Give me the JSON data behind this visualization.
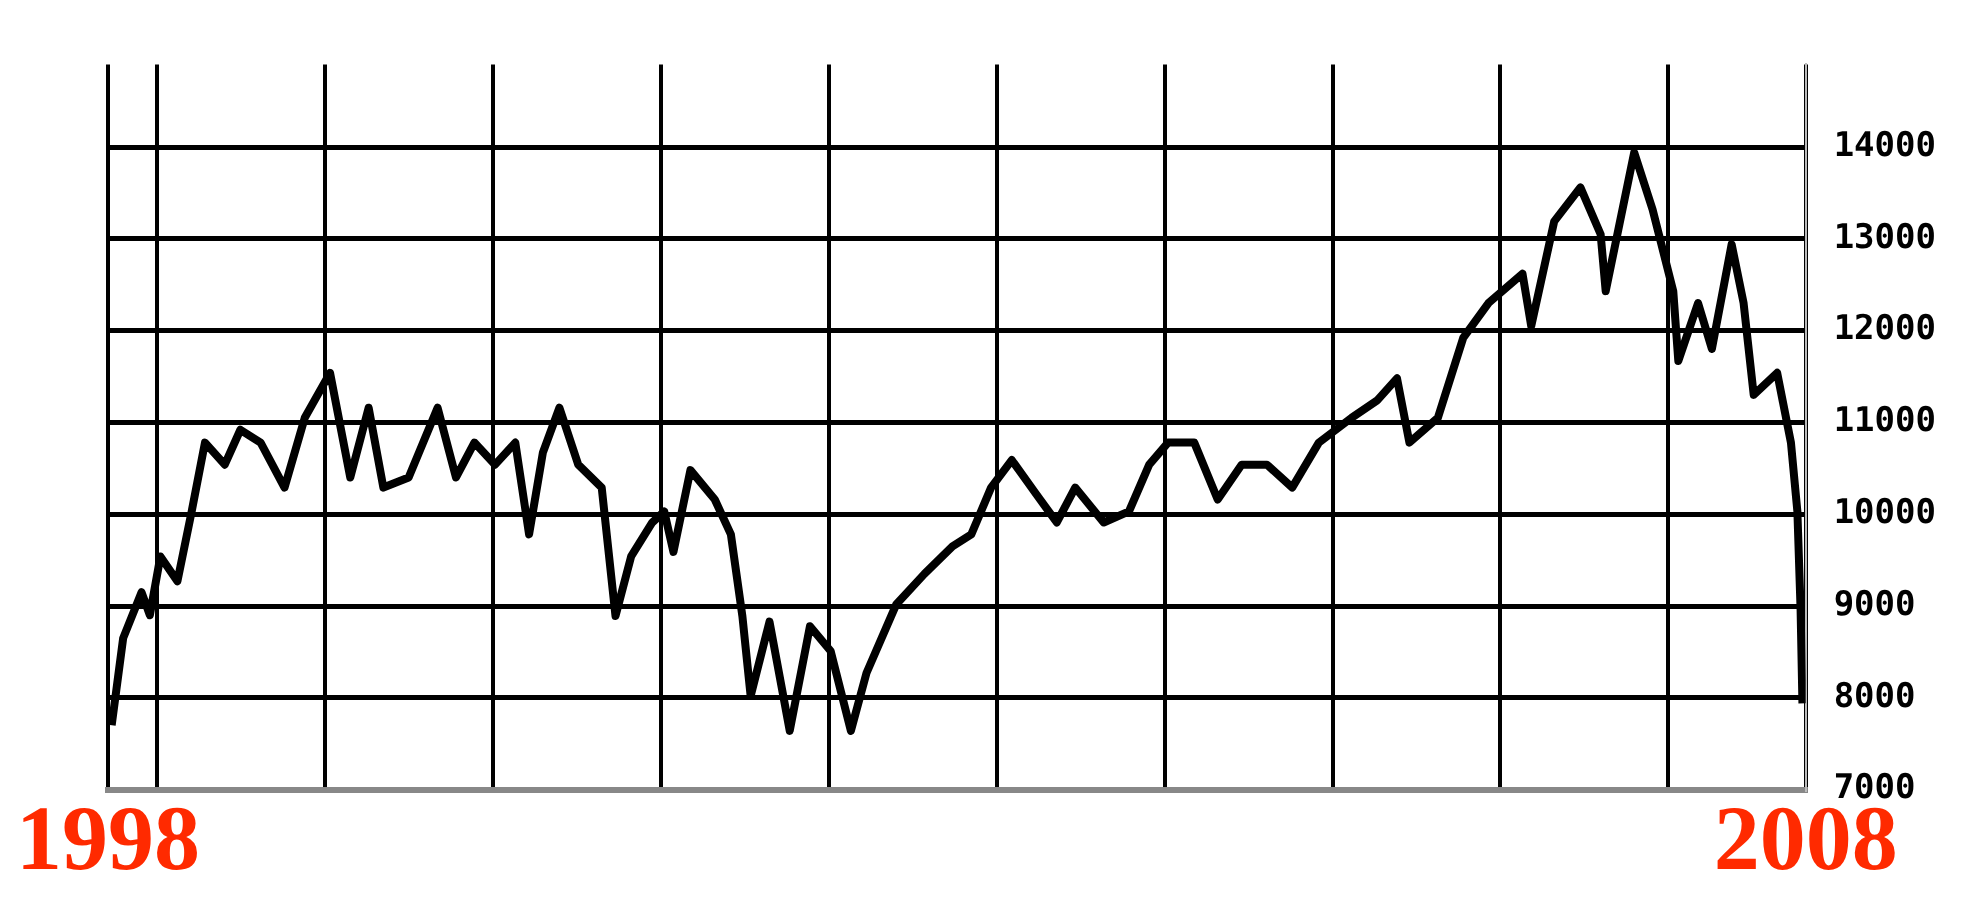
{
  "chart_data": {
    "type": "line",
    "x": [
      "1998-09-24",
      "1998-10-19",
      "1998-11-28",
      "1998-12-16",
      "1999-01-08",
      "1999-02-14",
      "1999-03-17",
      "1999-04-15",
      "1999-05-28",
      "1999-07-01",
      "1999-08-14",
      "1999-10-05",
      "1999-11-18",
      "2000-01-12",
      "2000-02-25",
      "2000-04-05",
      "2000-05-07",
      "2000-07-01",
      "2000-09-02",
      "2000-10-12",
      "2000-11-21",
      "2001-01-05",
      "2001-02-18",
      "2001-03-20",
      "2001-04-19",
      "2001-05-25",
      "2001-07-05",
      "2001-08-25",
      "2001-09-24",
      "2001-10-28",
      "2001-12-13",
      "2002-01-08",
      "2002-01-28",
      "2002-03-06",
      "2002-04-28",
      "2002-06-02",
      "2002-06-27",
      "2002-07-15",
      "2002-08-25",
      "2002-10-08",
      "2002-11-21",
      "2003-01-05",
      "2003-02-18",
      "2003-03-24",
      "2003-05-28",
      "2003-07-28",
      "2003-09-27",
      "2003-11-07",
      "2003-12-20",
      "2004-02-03",
      "2004-03-27",
      "2004-05-11",
      "2004-06-20",
      "2004-08-21",
      "2004-10-15",
      "2004-11-28",
      "2005-01-08",
      "2005-03-06",
      "2005-04-26",
      "2005-06-17",
      "2005-08-11",
      "2005-10-05",
      "2005-12-02",
      "2006-02-11",
      "2006-04-08",
      "2006-05-21",
      "2006-06-17",
      "2006-08-18",
      "2006-10-12",
      "2006-12-06",
      "2007-02-18",
      "2007-03-09",
      "2007-04-28",
      "2007-06-24",
      "2007-08-07",
      "2007-08-18",
      "2007-10-19",
      "2007-11-28",
      "2008-01-12",
      "2008-01-23",
      "2008-03-06",
      "2008-04-05",
      "2008-05-18",
      "2008-06-13",
      "2008-07-05",
      "2008-08-25",
      "2008-09-24",
      "2008-10-08",
      "2008-10-15",
      "2008-10-19"
    ],
    "series": [
      {
        "color": "#000000",
        "values": [
          7700,
          8650,
          9150,
          8900,
          9540,
          9270,
          10030,
          10780,
          10540,
          10920,
          10780,
          10290,
          11050,
          11540,
          10400,
          11160,
          10290,
          10400,
          11160,
          10400,
          10780,
          10540,
          10780,
          9780,
          10670,
          11160,
          10540,
          10290,
          8890,
          9540,
          9910,
          10030,
          9590,
          10480,
          10160,
          9780,
          8890,
          8020,
          8830,
          7640,
          8780,
          8510,
          7640,
          8270,
          9020,
          9350,
          9650,
          9780,
          10290,
          10590,
          10220,
          9910,
          10290,
          9910,
          10030,
          10540,
          10780,
          10780,
          10160,
          10540,
          10540,
          10290,
          10780,
          11050,
          11240,
          11480,
          10780,
          11050,
          11920,
          12300,
          12620,
          12050,
          13190,
          13560,
          13050,
          12430,
          13940,
          13320,
          12430,
          11670,
          12300,
          11800,
          12940,
          12300,
          11300,
          11540,
          10780,
          10030,
          8960,
          7940
        ]
      }
    ],
    "xlim": [
      "1998-09-16",
      "2008-10-26"
    ],
    "xticks": [
      {
        "value": "1998-09-16",
        "label": "1998"
      },
      {
        "value": "1999-01-01",
        "label": null
      },
      {
        "value": "2000-01-01",
        "label": null
      },
      {
        "value": "2001-01-01",
        "label": null
      },
      {
        "value": "2002-01-01",
        "label": null
      },
      {
        "value": "2003-01-01",
        "label": null
      },
      {
        "value": "2004-01-01",
        "label": null
      },
      {
        "value": "2005-01-01",
        "label": null
      },
      {
        "value": "2006-01-01",
        "label": null
      },
      {
        "value": "2007-01-01",
        "label": null
      },
      {
        "value": "2008-01-01",
        "label": null
      },
      {
        "value": "2008-10-26",
        "label": "2008"
      }
    ],
    "ylim": [
      7000,
      14900
    ],
    "yticks": [
      7000,
      8000,
      9000,
      10000,
      11000,
      12000,
      13000,
      14000
    ],
    "grid": true,
    "legend": false,
    "marker": "none",
    "line_style": "solid"
  }
}
